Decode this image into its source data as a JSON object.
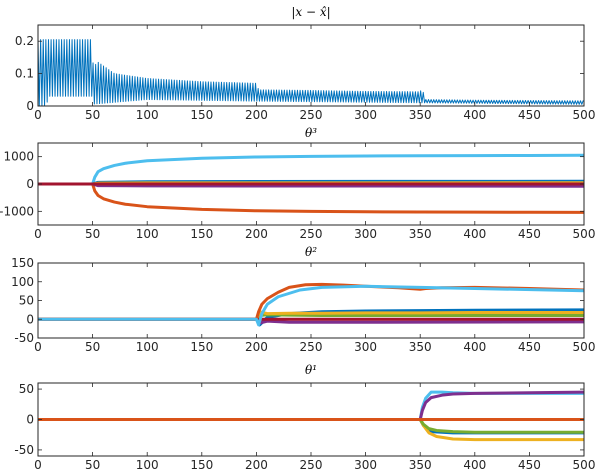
{
  "chart_data": [
    {
      "type": "line",
      "title": "|x − x̂|",
      "xlim": [
        0,
        500
      ],
      "ylim": [
        0,
        0.25
      ],
      "xticks": [
        "0",
        "50",
        "100",
        "150",
        "200",
        "250",
        "300",
        "350",
        "400",
        "450",
        "500"
      ],
      "yticks": [
        "0",
        "0.1",
        "0.2"
      ],
      "ytick_values": [
        0,
        0.1,
        0.2
      ],
      "grid": false,
      "series": [
        {
          "color": "#0072bd",
          "kind": "oscillation_envelope",
          "peak_x": [
            0,
            8,
            45,
            50,
            51,
            53,
            70,
            100,
            150,
            200,
            202,
            250,
            300,
            349,
            352,
            355,
            400,
            450,
            500
          ],
          "peak_y": [
            0.205,
            0.205,
            0.205,
            0.205,
            0.025,
            0.14,
            0.1,
            0.085,
            0.075,
            0.07,
            0.05,
            0.048,
            0.045,
            0.044,
            0.05,
            0.02,
            0.018,
            0.017,
            0.016
          ],
          "trough_x": [
            0,
            8,
            9,
            50,
            51,
            100,
            200,
            350,
            500
          ],
          "trough_y": [
            0,
            0,
            0.03,
            0.03,
            0.006,
            0.02,
            0.015,
            0.01,
            0.005
          ]
        }
      ]
    },
    {
      "type": "line",
      "title": "θ³",
      "xlim": [
        0,
        500
      ],
      "ylim": [
        -1500,
        1500
      ],
      "xticks": [
        "0",
        "50",
        "100",
        "150",
        "200",
        "250",
        "300",
        "350",
        "400",
        "450",
        "500"
      ],
      "yticks": [
        "-1000",
        "0",
        "1000"
      ],
      "ytick_values": [
        -1000,
        0,
        1000
      ],
      "grid": false,
      "series": [
        {
          "color": "#4dbeee",
          "x": [
            0,
            50,
            52,
            55,
            60,
            70,
            80,
            100,
            150,
            200,
            250,
            300,
            350,
            400,
            450,
            500
          ],
          "y": [
            0,
            0,
            250,
            450,
            560,
            680,
            760,
            850,
            940,
            990,
            1010,
            1025,
            1035,
            1040,
            1045,
            1050
          ]
        },
        {
          "color": "#d95319",
          "x": [
            0,
            50,
            52,
            55,
            60,
            70,
            80,
            100,
            150,
            200,
            250,
            300,
            350,
            400,
            450,
            500
          ],
          "y": [
            0,
            0,
            -250,
            -420,
            -540,
            -660,
            -740,
            -830,
            -930,
            -980,
            -1000,
            -1015,
            -1025,
            -1030,
            -1035,
            -1040
          ]
        },
        {
          "color": "#0072bd",
          "x": [
            0,
            50,
            55,
            100,
            200,
            350,
            500
          ],
          "y": [
            0,
            0,
            60,
            80,
            90,
            95,
            100
          ]
        },
        {
          "color": "#77ac30",
          "x": [
            0,
            50,
            55,
            100,
            500
          ],
          "y": [
            0,
            0,
            -30,
            -40,
            -45
          ]
        },
        {
          "color": "#edb120",
          "x": [
            0,
            50,
            55,
            100,
            500
          ],
          "y": [
            0,
            0,
            30,
            40,
            45
          ]
        },
        {
          "color": "#7e2f8e",
          "x": [
            0,
            50,
            55,
            100,
            500
          ],
          "y": [
            0,
            0,
            -60,
            -70,
            -80
          ]
        },
        {
          "color": "#a2142f",
          "x": [
            0,
            500
          ],
          "y": [
            0,
            0
          ]
        }
      ]
    },
    {
      "type": "line",
      "title": "θ²",
      "xlim": [
        0,
        500
      ],
      "ylim": [
        -50,
        150
      ],
      "xticks": [
        "0",
        "50",
        "100",
        "150",
        "200",
        "250",
        "300",
        "350",
        "400",
        "450",
        "500"
      ],
      "yticks": [
        "-50",
        "0",
        "50",
        "100",
        "150"
      ],
      "ytick_values": [
        -50,
        0,
        50,
        100,
        150
      ],
      "grid": false,
      "series": [
        {
          "color": "#0072bd",
          "x": [
            0,
            200,
            203,
            210,
            230,
            260,
            300,
            350,
            400,
            500
          ],
          "y": [
            0,
            0,
            -15,
            5,
            15,
            20,
            22,
            23,
            24,
            25
          ]
        },
        {
          "color": "#77ac30",
          "x": [
            0,
            200,
            203,
            210,
            230,
            260,
            300,
            500
          ],
          "y": [
            0,
            0,
            10,
            12,
            11,
            10,
            10,
            10
          ]
        },
        {
          "color": "#edb120",
          "x": [
            0,
            200,
            203,
            210,
            230,
            260,
            300,
            350,
            400,
            500
          ],
          "y": [
            0,
            0,
            20,
            15,
            16,
            16,
            17,
            17,
            18,
            18
          ]
        },
        {
          "color": "#7e2f8e",
          "x": [
            0,
            200,
            203,
            210,
            230,
            300,
            500
          ],
          "y": [
            0,
            0,
            -10,
            -5,
            -8,
            -8,
            -7
          ]
        },
        {
          "color": "#a2142f",
          "x": [
            0,
            500
          ],
          "y": [
            0,
            0
          ]
        },
        {
          "color": "#d95319",
          "x": [
            0,
            200,
            202,
            205,
            210,
            220,
            230,
            245,
            260,
            280,
            300,
            330,
            350,
            355,
            370,
            400,
            450,
            500
          ],
          "y": [
            0,
            0,
            20,
            40,
            55,
            72,
            85,
            92,
            93,
            91,
            88,
            84,
            80,
            82,
            84,
            85,
            82,
            78
          ]
        },
        {
          "color": "#4dbeee",
          "x": [
            0,
            200,
            202,
            205,
            210,
            220,
            240,
            260,
            300,
            350,
            400,
            500
          ],
          "y": [
            0,
            0,
            -15,
            15,
            40,
            60,
            78,
            85,
            88,
            85,
            82,
            76
          ]
        }
      ]
    },
    {
      "type": "line",
      "title": "θ¹",
      "xlim": [
        0,
        500
      ],
      "ylim": [
        -60,
        60
      ],
      "xticks": [
        "0",
        "50",
        "100",
        "150",
        "200",
        "250",
        "300",
        "350",
        "400",
        "450",
        "500"
      ],
      "yticks": [
        "-50",
        "0",
        "50"
      ],
      "ytick_values": [
        -50,
        0,
        50
      ],
      "grid": false,
      "series": [
        {
          "color": "#a2142f",
          "x": [
            0,
            500
          ],
          "y": [
            0,
            0
          ]
        },
        {
          "color": "#0072bd",
          "x": [
            0,
            350,
            353,
            360,
            380,
            500
          ],
          "y": [
            0,
            0,
            -10,
            -20,
            -22,
            -22
          ]
        },
        {
          "color": "#edb120",
          "x": [
            0,
            350,
            353,
            358,
            365,
            380,
            400,
            450,
            500
          ],
          "y": [
            0,
            0,
            -10,
            -22,
            -28,
            -32,
            -33,
            -33,
            -33
          ]
        },
        {
          "color": "#77ac30",
          "x": [
            0,
            350,
            353,
            358,
            365,
            380,
            400,
            450,
            500
          ],
          "y": [
            0,
            0,
            -8,
            -15,
            -18,
            -20,
            -21,
            -21,
            -21
          ]
        },
        {
          "color": "#4dbeee",
          "x": [
            0,
            350,
            352,
            355,
            360,
            370,
            380,
            400,
            450,
            500
          ],
          "y": [
            0,
            0,
            20,
            35,
            45,
            45,
            44,
            43,
            43,
            43
          ]
        },
        {
          "color": "#7e2f8e",
          "x": [
            0,
            350,
            352,
            355,
            360,
            370,
            380,
            400,
            450,
            500
          ],
          "y": [
            0,
            0,
            15,
            28,
            36,
            40,
            42,
            43,
            44,
            45
          ]
        },
        {
          "color": "#d95319",
          "x": [
            0,
            500
          ],
          "y": [
            0,
            0
          ]
        }
      ]
    }
  ]
}
